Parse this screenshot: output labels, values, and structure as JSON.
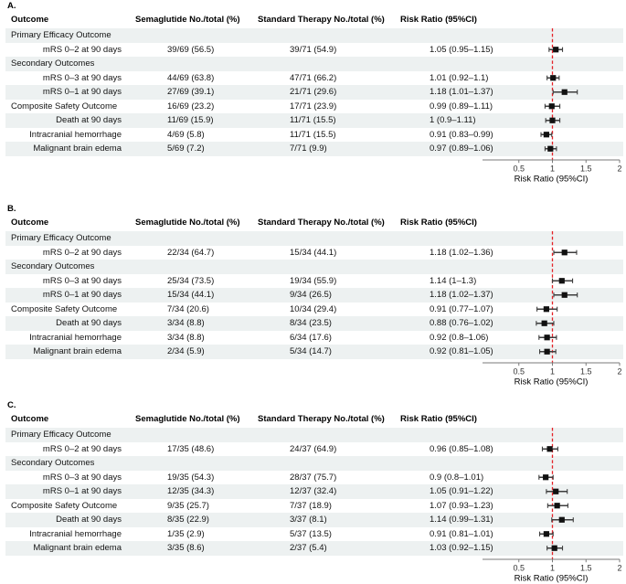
{
  "colors": {
    "stripe": "#edf1f1",
    "reference_line": "#e42127",
    "marker": "#111111",
    "ci_line": "#3d3d3d",
    "axis": "#7a7a7a",
    "tick_text": "#333333",
    "text": "#000000"
  },
  "chart_data": [
    {
      "type": "scatter",
      "style": "forest-plot",
      "panel_label": "A.",
      "columns": [
        "Outcome",
        "Semaglutide No./total (%)",
        "Standard Therapy No./total (%)",
        "Risk Ratio (95%CI)"
      ],
      "rows": [
        {
          "label": "Primary Efficacy Outcome",
          "kind": "section"
        },
        {
          "label": "mRS 0–2 at 90 days",
          "kind": "data",
          "align": "right",
          "semaglutide": "39/69 (56.5)",
          "standard": "39/71 (54.9)",
          "rr_label": "1.05 (0.95–1.15)",
          "rr": 1.05,
          "ci_low": 0.95,
          "ci_high": 1.15
        },
        {
          "label": "Secondary Outcomes",
          "kind": "section"
        },
        {
          "label": "mRS 0–3 at 90 days",
          "kind": "data",
          "align": "right",
          "semaglutide": "44/69 (63.8)",
          "standard": "47/71 (66.2)",
          "rr_label": "1.01 (0.92–1.1)",
          "rr": 1.01,
          "ci_low": 0.92,
          "ci_high": 1.1
        },
        {
          "label": "mRS 0–1 at 90 days",
          "kind": "data",
          "align": "right",
          "semaglutide": "27/69 (39.1)",
          "standard": "21/71 (29.6)",
          "rr_label": "1.18 (1.01–1.37)",
          "rr": 1.18,
          "ci_low": 1.01,
          "ci_high": 1.37
        },
        {
          "label": "Composite Safety Outcome",
          "kind": "data",
          "align": "left",
          "semaglutide": "16/69 (23.2)",
          "standard": "17/71 (23.9)",
          "rr_label": "0.99 (0.89–1.11)",
          "rr": 0.99,
          "ci_low": 0.89,
          "ci_high": 1.11
        },
        {
          "label": "Death at 90 days",
          "kind": "data",
          "align": "right",
          "semaglutide": "11/69 (15.9)",
          "standard": "11/71 (15.5)",
          "rr_label": "1 (0.9–1.11)",
          "rr": 1.0,
          "ci_low": 0.9,
          "ci_high": 1.11
        },
        {
          "label": "Intracranial hemorrhage",
          "kind": "data",
          "align": "right",
          "semaglutide": "4/69 (5.8)",
          "standard": "11/71 (15.5)",
          "rr_label": "0.91 (0.83–0.99)",
          "rr": 0.91,
          "ci_low": 0.83,
          "ci_high": 0.99
        },
        {
          "label": "Malignant brain edema",
          "kind": "data",
          "align": "right",
          "semaglutide": "5/69 (7.2)",
          "standard": "7/71 (9.9)",
          "rr_label": "0.97 (0.89–1.06)",
          "rr": 0.97,
          "ci_low": 0.89,
          "ci_high": 1.06
        }
      ],
      "xaxis": {
        "ticks": [
          0.5,
          1,
          1.5,
          2
        ],
        "tick_labels": [
          "0.5",
          "1",
          "1.5",
          "2"
        ],
        "label": "Risk Ratio (95%CI)",
        "range": [
          0.03,
          2
        ],
        "reference_line": 1
      }
    },
    {
      "type": "scatter",
      "style": "forest-plot",
      "panel_label": "B.",
      "columns": [
        "Outcome",
        "Semaglutide No./total (%)",
        "Standard Therapy No./total (%)",
        "Risk Ratio (95%CI)"
      ],
      "rows": [
        {
          "label": "Primary Efficacy Outcome",
          "kind": "section"
        },
        {
          "label": "mRS 0–2 at 90 days",
          "kind": "data",
          "align": "right",
          "semaglutide": "22/34 (64.7)",
          "standard": "15/34 (44.1)",
          "rr_label": "1.18 (1.02–1.36)",
          "rr": 1.18,
          "ci_low": 1.02,
          "ci_high": 1.36
        },
        {
          "label": "Secondary Outcomes",
          "kind": "section"
        },
        {
          "label": "mRS 0–3 at 90 days",
          "kind": "data",
          "align": "right",
          "semaglutide": "25/34 (73.5)",
          "standard": "19/34 (55.9)",
          "rr_label": "1.14 (1–1.3)",
          "rr": 1.14,
          "ci_low": 1.0,
          "ci_high": 1.3
        },
        {
          "label": "mRS 0–1 at 90 days",
          "kind": "data",
          "align": "right",
          "semaglutide": "15/34 (44.1)",
          "standard": "9/34 (26.5)",
          "rr_label": "1.18 (1.02–1.37)",
          "rr": 1.18,
          "ci_low": 1.02,
          "ci_high": 1.37
        },
        {
          "label": "Composite Safety Outcome",
          "kind": "data",
          "align": "left",
          "semaglutide": "7/34 (20.6)",
          "standard": "10/34 (29.4)",
          "rr_label": "0.91 (0.77–1.07)",
          "rr": 0.91,
          "ci_low": 0.77,
          "ci_high": 1.07
        },
        {
          "label": "Death at 90 days",
          "kind": "data",
          "align": "right",
          "semaglutide": "3/34 (8.8)",
          "standard": "8/34 (23.5)",
          "rr_label": "0.88 (0.76–1.02)",
          "rr": 0.88,
          "ci_low": 0.76,
          "ci_high": 1.02
        },
        {
          "label": "Intracranial hemorrhage",
          "kind": "data",
          "align": "right",
          "semaglutide": "3/34 (8.8)",
          "standard": "6/34 (17.6)",
          "rr_label": "0.92 (0.8–1.06)",
          "rr": 0.92,
          "ci_low": 0.8,
          "ci_high": 1.06
        },
        {
          "label": "Malignant brain edema",
          "kind": "data",
          "align": "right",
          "semaglutide": "2/34 (5.9)",
          "standard": "5/34 (14.7)",
          "rr_label": "0.92 (0.81–1.05)",
          "rr": 0.92,
          "ci_low": 0.81,
          "ci_high": 1.05
        }
      ],
      "xaxis": {
        "ticks": [
          0.5,
          1,
          1.5,
          2
        ],
        "tick_labels": [
          "0.5",
          "1",
          "1.5",
          "2"
        ],
        "label": "Risk Ratio (95%CI)",
        "range": [
          0.03,
          2
        ],
        "reference_line": 1
      }
    },
    {
      "type": "scatter",
      "style": "forest-plot",
      "panel_label": "C.",
      "columns": [
        "Outcome",
        "Semaglutide No./total (%)",
        "Standard Therapy No./total (%)",
        "Risk Ratio (95%CI)"
      ],
      "rows": [
        {
          "label": "Primary Efficacy Outcome",
          "kind": "section"
        },
        {
          "label": "mRS 0–2 at 90 days",
          "kind": "data",
          "align": "right",
          "semaglutide": "17/35 (48.6)",
          "standard": "24/37 (64.9)",
          "rr_label": "0.96 (0.85–1.08)",
          "rr": 0.96,
          "ci_low": 0.85,
          "ci_high": 1.08
        },
        {
          "label": "Secondary Outcomes",
          "kind": "section"
        },
        {
          "label": "mRS 0–3 at 90 days",
          "kind": "data",
          "align": "right",
          "semaglutide": "19/35 (54.3)",
          "standard": "28/37 (75.7)",
          "rr_label": "0.9 (0.8–1.01)",
          "rr": 0.9,
          "ci_low": 0.8,
          "ci_high": 1.01
        },
        {
          "label": "mRS 0–1 at 90 days",
          "kind": "data",
          "align": "right",
          "semaglutide": "12/35 (34.3)",
          "standard": "12/37 (32.4)",
          "rr_label": "1.05 (0.91–1.22)",
          "rr": 1.05,
          "ci_low": 0.91,
          "ci_high": 1.22
        },
        {
          "label": "Composite Safety Outcome",
          "kind": "data",
          "align": "left",
          "semaglutide": "9/35 (25.7)",
          "standard": "7/37 (18.9)",
          "rr_label": "1.07 (0.93–1.23)",
          "rr": 1.07,
          "ci_low": 0.93,
          "ci_high": 1.23
        },
        {
          "label": "Death at 90 days",
          "kind": "data",
          "align": "right",
          "semaglutide": "8/35 (22.9)",
          "standard": "3/37 (8.1)",
          "rr_label": "1.14 (0.99–1.31)",
          "rr": 1.14,
          "ci_low": 0.99,
          "ci_high": 1.31
        },
        {
          "label": "Intracranial hemorrhage",
          "kind": "data",
          "align": "right",
          "semaglutide": "1/35 (2.9)",
          "standard": "5/37 (13.5)",
          "rr_label": "0.91 (0.81–1.01)",
          "rr": 0.91,
          "ci_low": 0.81,
          "ci_high": 1.01
        },
        {
          "label": "Malignant brain edema",
          "kind": "data",
          "align": "right",
          "semaglutide": "3/35 (8.6)",
          "standard": "2/37 (5.4)",
          "rr_label": "1.03 (0.92–1.15)",
          "rr": 1.03,
          "ci_low": 0.92,
          "ci_high": 1.15
        }
      ],
      "xaxis": {
        "ticks": [
          0.5,
          1,
          1.5,
          2
        ],
        "tick_labels": [
          "0.5",
          "1",
          "1.5",
          "2"
        ],
        "label": "Risk Ratio (95%CI)",
        "range": [
          0.03,
          2
        ],
        "reference_line": 1
      }
    }
  ]
}
